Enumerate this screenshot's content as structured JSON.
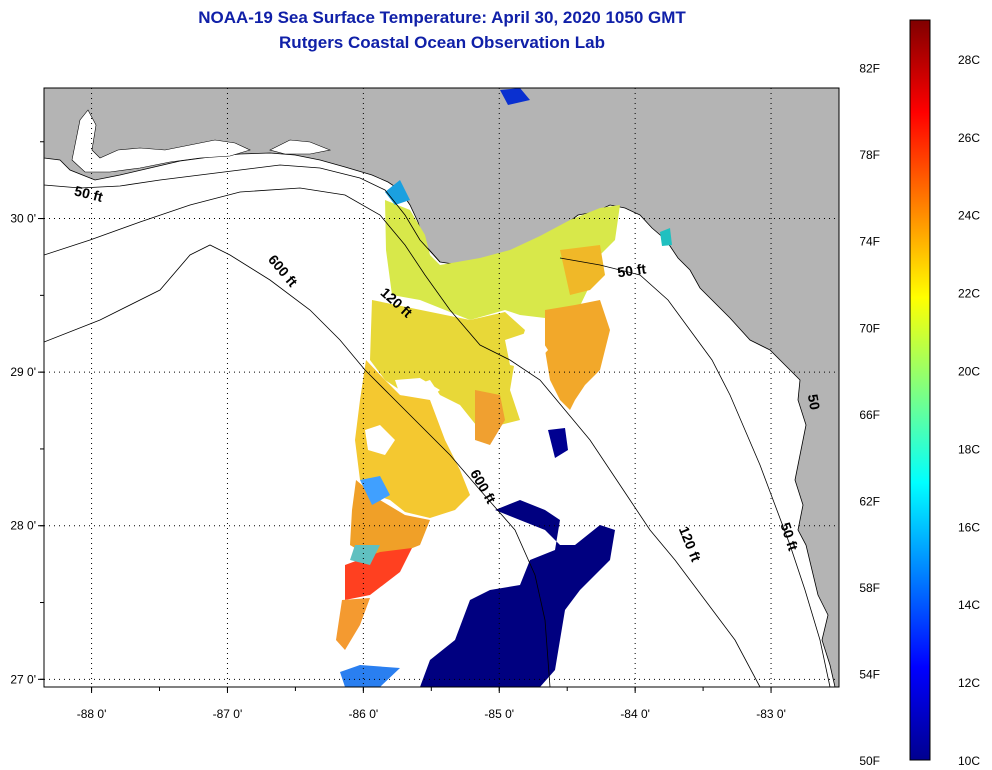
{
  "title": "NOAA-19 Sea Surface Temperature:  April 30, 2020 1050 GMT",
  "subtitle": "Rutgers Coastal Ocean Observation Lab",
  "map": {
    "lon_range": [
      -88.35,
      -82.5
    ],
    "lat_range": [
      26.95,
      30.85
    ],
    "lon_ticks": [
      {
        "value": -88,
        "label": "-88 0'"
      },
      {
        "value": -87,
        "label": "-87 0'"
      },
      {
        "value": -86,
        "label": "-86 0'"
      },
      {
        "value": -85,
        "label": "-85 0'"
      },
      {
        "value": -84,
        "label": "-84 0'"
      },
      {
        "value": -83,
        "label": "-83 0'"
      }
    ],
    "lat_ticks": [
      {
        "value": 30,
        "label": "30 0'"
      },
      {
        "value": 29,
        "label": "29 0'"
      },
      {
        "value": 28,
        "label": "28 0'"
      },
      {
        "value": 27,
        "label": "27 0'"
      }
    ],
    "grid": true,
    "land_color": "#b4b4b4",
    "contour_labels": [
      {
        "text": "50 ft",
        "lon": -88.03,
        "lat": 30.13,
        "angle": 14
      },
      {
        "text": "600 ft",
        "lon": -86.62,
        "lat": 29.64,
        "angle": 50
      },
      {
        "text": "120 ft",
        "lon": -85.78,
        "lat": 29.43,
        "angle": 42
      },
      {
        "text": "50 ft",
        "lon": -84.02,
        "lat": 29.63,
        "angle": -8
      },
      {
        "text": "600 ft",
        "lon": -85.15,
        "lat": 28.24,
        "angle": 60
      },
      {
        "text": "120 ft",
        "lon": -83.63,
        "lat": 27.87,
        "angle": 68
      },
      {
        "text": "50 ft",
        "lon": -82.9,
        "lat": 27.92,
        "angle": 72
      },
      {
        "text": "50",
        "lon": -82.72,
        "lat": 28.8,
        "angle": 80
      }
    ]
  },
  "colorbar": {
    "range_c": [
      10,
      29
    ],
    "fahrenheit_ticks": [
      {
        "value": 82,
        "label": "82F"
      },
      {
        "value": 78,
        "label": "78F"
      },
      {
        "value": 74,
        "label": "74F"
      },
      {
        "value": 70,
        "label": "70F"
      },
      {
        "value": 66,
        "label": "66F"
      },
      {
        "value": 62,
        "label": "62F"
      },
      {
        "value": 58,
        "label": "58F"
      },
      {
        "value": 54,
        "label": "54F"
      },
      {
        "value": 50,
        "label": "50F"
      }
    ],
    "celsius_ticks": [
      {
        "value": 28,
        "label": "28C"
      },
      {
        "value": 26,
        "label": "26C"
      },
      {
        "value": 24,
        "label": "24C"
      },
      {
        "value": 22,
        "label": "22C"
      },
      {
        "value": 20,
        "label": "20C"
      },
      {
        "value": 18,
        "label": "18C"
      },
      {
        "value": 16,
        "label": "16C"
      },
      {
        "value": 14,
        "label": "14C"
      },
      {
        "value": 12,
        "label": "12C"
      },
      {
        "value": 10,
        "label": "10C"
      }
    ],
    "colors": [
      "#00008f",
      "#0000ff",
      "#0080ff",
      "#00ffff",
      "#80ff80",
      "#ffff00",
      "#ff8000",
      "#ff0000",
      "#800000"
    ]
  }
}
